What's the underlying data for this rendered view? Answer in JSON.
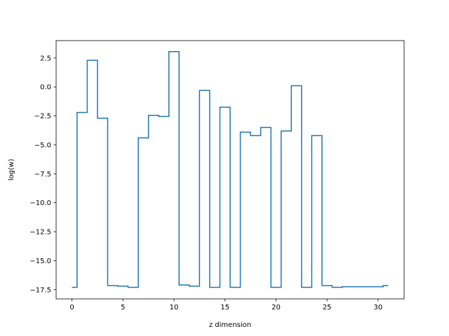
{
  "chart_data": {
    "type": "line",
    "drawstyle": "steps-mid",
    "title": "",
    "xlabel": "z dimension",
    "ylabel": "log(w)",
    "xlim": [
      -1.55,
      32.55
    ],
    "ylim": [
      -18.3,
      4.0
    ],
    "xticks": [
      0,
      5,
      10,
      15,
      20,
      25,
      30
    ],
    "xtick_labels": [
      "0",
      "5",
      "10",
      "15",
      "20",
      "25",
      "30"
    ],
    "yticks": [
      2.5,
      0.0,
      -2.5,
      -5.0,
      -7.5,
      -10.0,
      -12.5,
      -15.0,
      -17.5
    ],
    "ytick_labels": [
      "2.5",
      "0.0",
      "−2.5",
      "−5.0",
      "−7.5",
      "−10.0",
      "−12.5",
      "−15.0",
      "−17.5"
    ],
    "grid": false,
    "legend": false,
    "series": [
      {
        "color": "#1f77b4",
        "x": [
          0,
          1,
          2,
          3,
          4,
          5,
          6,
          7,
          8,
          9,
          10,
          11,
          12,
          13,
          14,
          15,
          16,
          17,
          18,
          19,
          20,
          21,
          22,
          23,
          24,
          25,
          26,
          27,
          28,
          29,
          30,
          31
        ],
        "y": [
          -17.3,
          -2.2,
          2.3,
          -2.7,
          -17.15,
          -17.2,
          -17.3,
          -4.4,
          -2.45,
          -2.55,
          3.05,
          -17.1,
          -17.2,
          -0.3,
          -17.3,
          -1.75,
          -17.3,
          -3.9,
          -4.2,
          -3.5,
          -17.3,
          -3.8,
          0.1,
          -17.3,
          -4.2,
          -17.15,
          -17.3,
          -17.25,
          -17.25,
          -17.25,
          -17.25,
          -17.15
        ]
      }
    ]
  }
}
